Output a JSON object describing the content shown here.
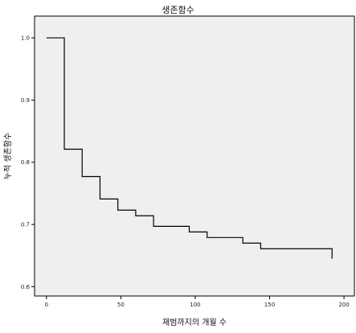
{
  "chart_data": {
    "type": "line",
    "step": "post",
    "title": "생존함수",
    "xlabel": "재범까지의 개월 수",
    "ylabel": "누적 생존함수",
    "xlim": [
      -8,
      207
    ],
    "ylim": [
      0.585,
      1.035
    ],
    "x_ticks": [
      0,
      50,
      100,
      150,
      200
    ],
    "x_tick_labels": [
      "0",
      "50",
      "100",
      "150",
      "200"
    ],
    "y_ticks": [
      0.6,
      0.7,
      0.8,
      0.9,
      1.0
    ],
    "y_tick_labels": [
      "0.6",
      "0.7",
      "0.8",
      "0.9",
      "1.0"
    ],
    "grid": false,
    "colors": {
      "plot_background": "#efefef",
      "line": "#000000",
      "axis": "#000000"
    },
    "series": [
      {
        "x": [
          0,
          12,
          24,
          36,
          48,
          60,
          72,
          96,
          108,
          132,
          144,
          192
        ],
        "y": [
          1.0,
          0.821,
          0.777,
          0.741,
          0.723,
          0.714,
          0.697,
          0.688,
          0.679,
          0.67,
          0.661,
          0.645
        ]
      }
    ]
  }
}
